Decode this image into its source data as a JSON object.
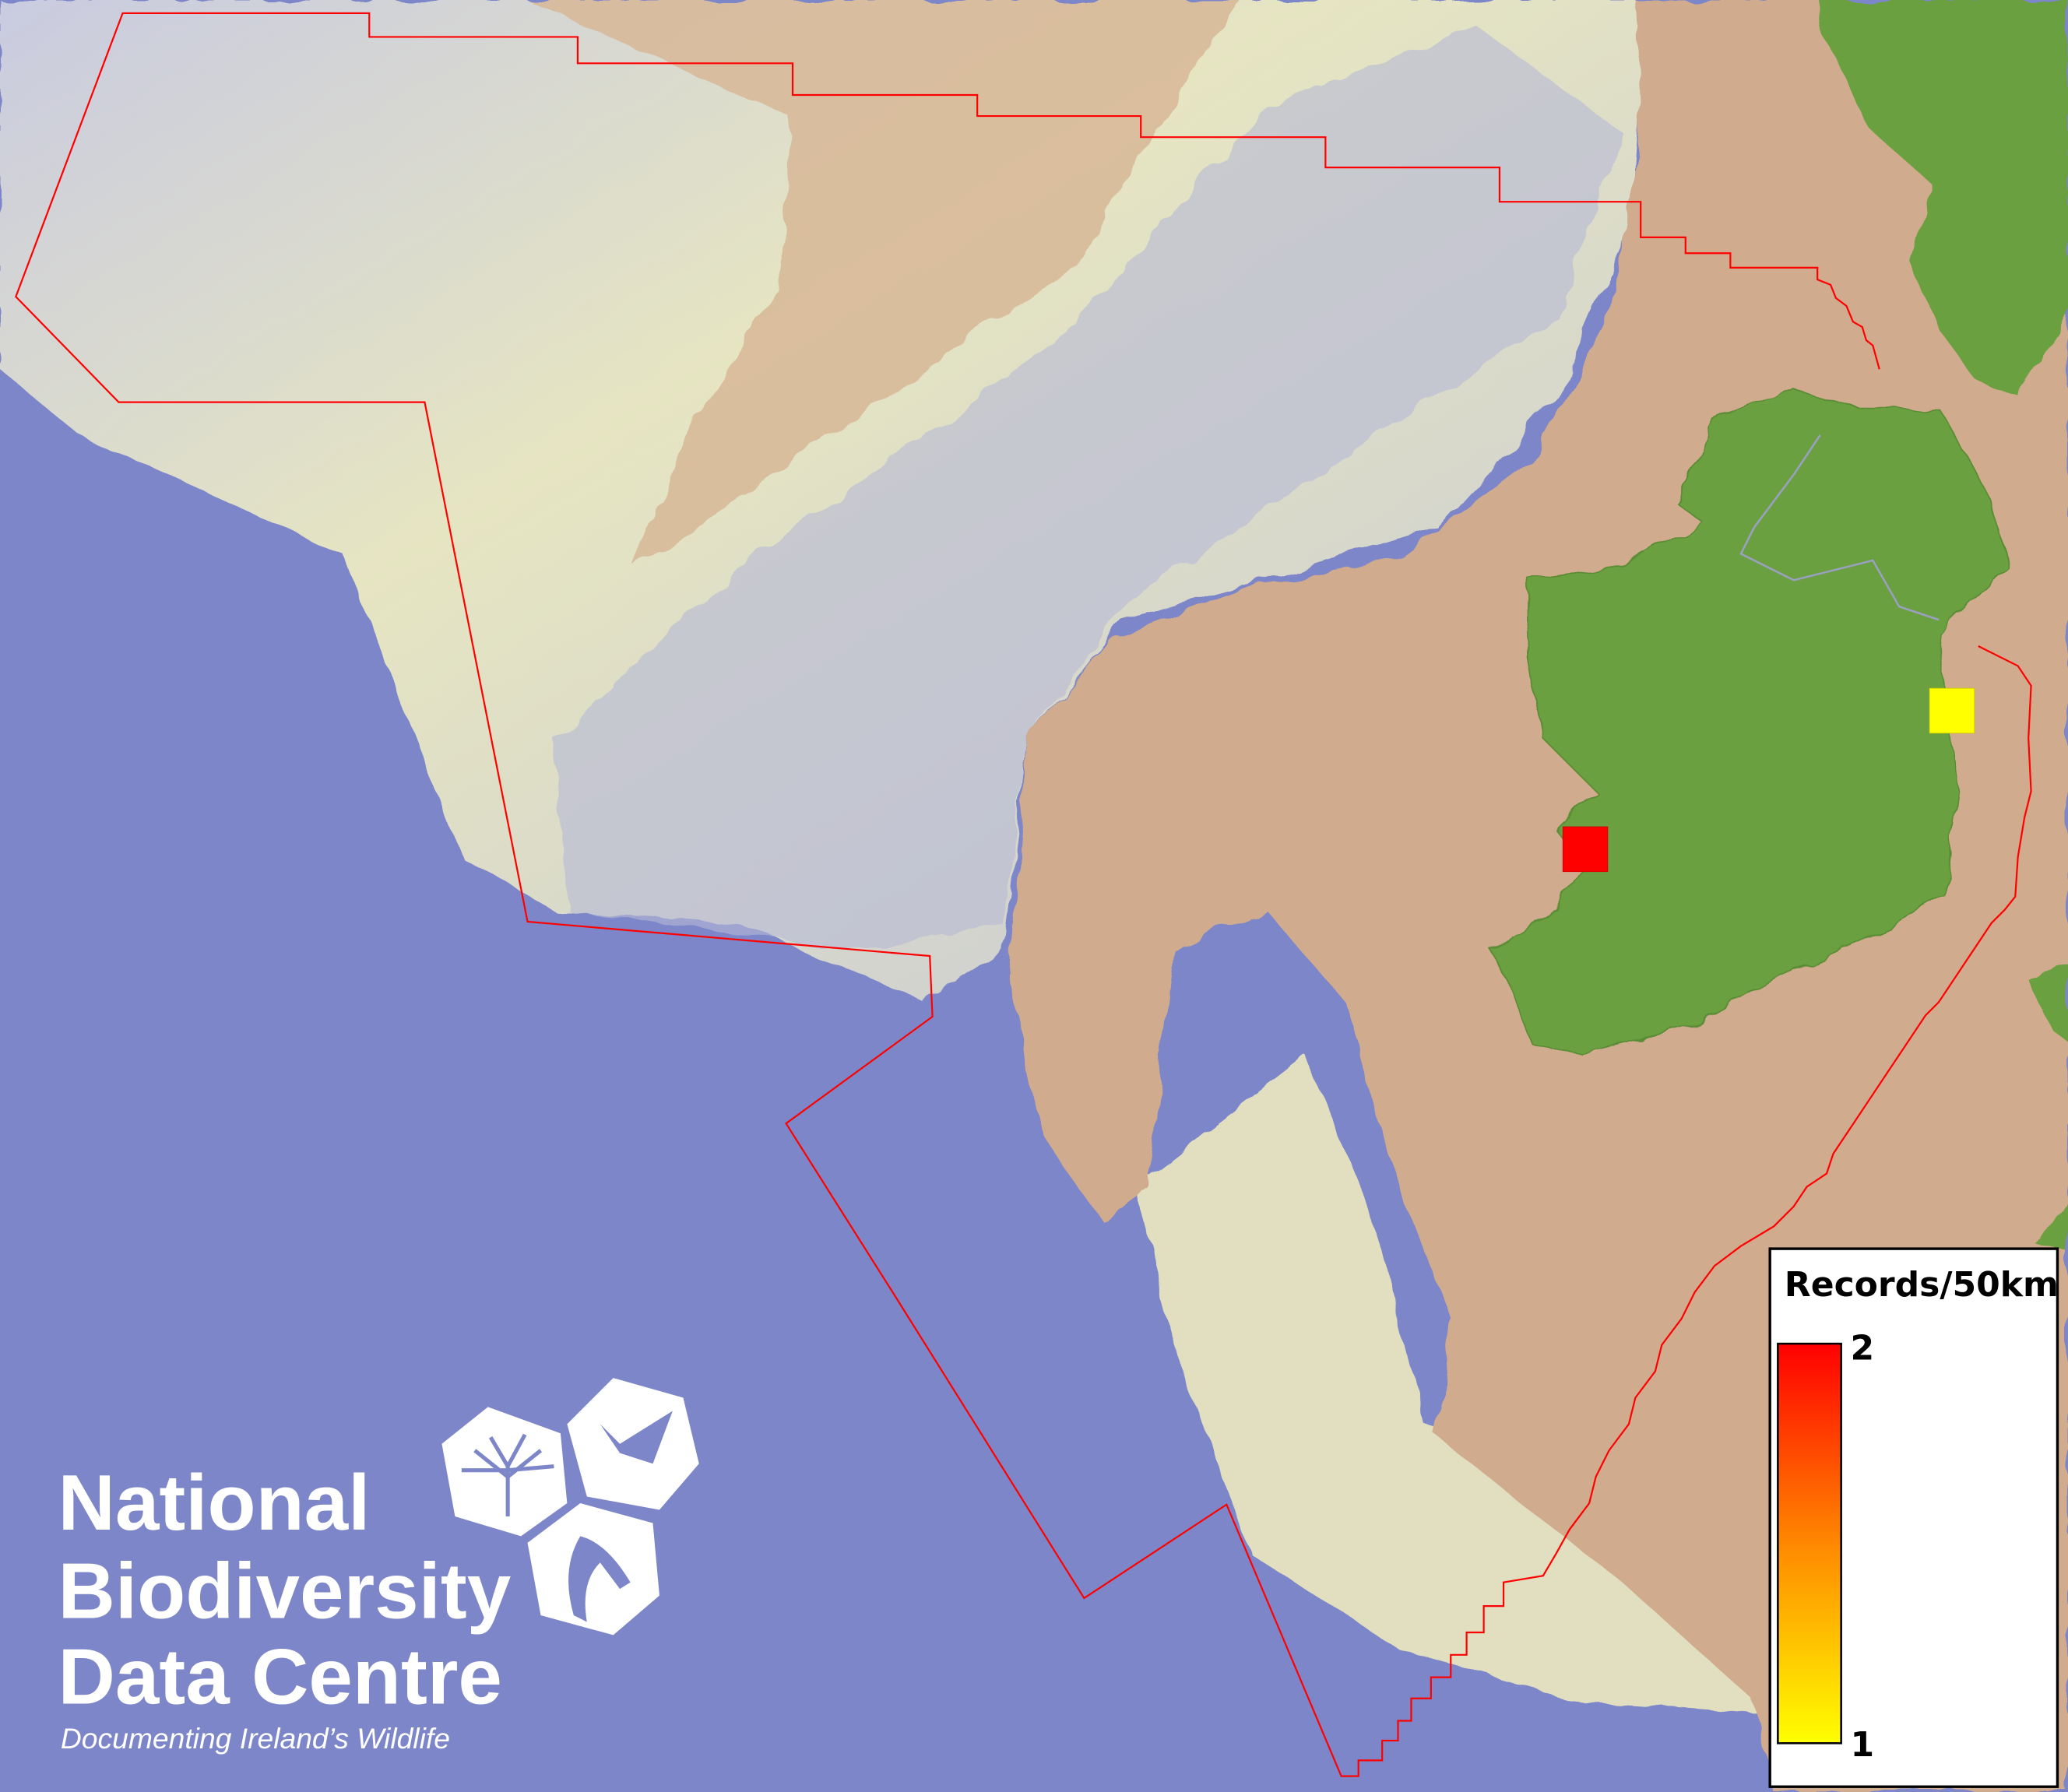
{
  "map": {
    "colors": {
      "deep_sea": "#7c86c8",
      "shelf_pale": "#e4e4c0",
      "shelf_grey": "#c8cad8",
      "shallow_tan": "#d1ab8e",
      "land_green": "#6aa040",
      "boundary": "#ff0000"
    },
    "layers": [
      "hillshaded bathymetry",
      "land",
      "boundary line",
      "50km grid records"
    ]
  },
  "records": [
    {
      "grid": "west coast square",
      "value": 2,
      "color": "#ff0000"
    },
    {
      "grid": "east coast square",
      "value": 1,
      "color": "#ffff00"
    }
  ],
  "legend": {
    "title": "Records/50km",
    "max_label": "2",
    "min_label": "1",
    "max_color": "#ff0000",
    "mid_color": "#ff8800",
    "min_color": "#ffff00"
  },
  "logo": {
    "line1": "National",
    "line2": "Biodiversity",
    "line3": "Data Centre",
    "tagline": "Documenting Ireland’s Wildlife",
    "icons": [
      "tree-icon",
      "butterfly-icon",
      "seahorse-icon"
    ]
  }
}
